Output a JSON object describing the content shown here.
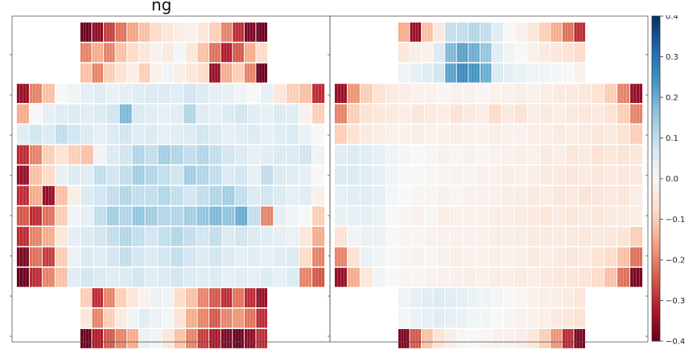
{
  "partial_title": "ng",
  "chart_data": {
    "type": "heatmap",
    "panels": [
      {
        "name": "",
        "rows": [
          {
            "k": "top",
            "values": [
              -0.42,
              -0.36,
              -0.28,
              -0.22,
              -0.16,
              -0.12,
              -0.08,
              -0.05,
              -0.03,
              -0.02,
              -0.05,
              -0.1,
              -0.2,
              -0.3,
              -0.38,
              -0.42
            ]
          },
          {
            "k": "top",
            "values": [
              -0.2,
              -0.15,
              -0.2,
              -0.12,
              -0.08,
              -0.05,
              -0.02,
              -0.04,
              0.01,
              -0.05,
              -0.12,
              -0.22,
              -0.32,
              -0.25,
              -0.15,
              -0.08
            ]
          },
          {
            "k": "top",
            "values": [
              -0.12,
              -0.2,
              -0.1,
              -0.06,
              -0.03,
              -0.1,
              -0.02,
              0.02,
              -0.03,
              -0.05,
              -0.08,
              -0.35,
              -0.15,
              -0.1,
              -0.2,
              -0.4
            ]
          },
          {
            "k": "mid",
            "values": [
              -0.35,
              -0.2,
              -0.12,
              0.0,
              0.02,
              0.04,
              0.05,
              0.03,
              0.04,
              0.05,
              0.06,
              0.06,
              0.05,
              0.08,
              0.06,
              0.04,
              0.03,
              0.02,
              0.0,
              0.04,
              -0.05,
              -0.1,
              -0.12,
              -0.3
            ]
          },
          {
            "k": "mid",
            "values": [
              -0.15,
              0.0,
              0.04,
              0.05,
              0.06,
              0.05,
              0.06,
              0.08,
              0.18,
              0.06,
              0.05,
              0.04,
              0.05,
              0.12,
              0.05,
              0.04,
              0.06,
              0.08,
              0.05,
              0.04,
              0.06,
              0.05,
              -0.02,
              -0.1
            ]
          },
          {
            "k": "mid",
            "values": [
              0.05,
              0.08,
              0.06,
              0.1,
              0.08,
              0.06,
              0.04,
              0.06,
              0.08,
              0.05,
              0.06,
              0.04,
              0.05,
              0.06,
              0.08,
              0.06,
              0.04,
              0.05,
              0.06,
              0.04,
              0.05,
              0.06,
              0.03,
              0.0
            ]
          },
          {
            "k": "mid",
            "values": [
              -0.3,
              -0.2,
              -0.1,
              -0.06,
              -0.1,
              -0.12,
              0.02,
              0.06,
              0.08,
              0.12,
              0.1,
              0.14,
              0.12,
              0.1,
              0.12,
              0.1,
              0.08,
              0.06,
              0.04,
              0.05,
              0.06,
              0.06,
              0.08,
              0.02
            ]
          },
          {
            "k": "mid",
            "values": [
              -0.35,
              -0.12,
              -0.08,
              0.03,
              0.06,
              0.05,
              0.1,
              0.08,
              0.1,
              0.14,
              0.12,
              0.1,
              0.08,
              0.14,
              0.12,
              0.1,
              0.06,
              0.08,
              0.04,
              0.1,
              0.06,
              0.05,
              0.04,
              0.0
            ]
          },
          {
            "k": "mid",
            "values": [
              -0.3,
              -0.15,
              -0.35,
              -0.12,
              -0.03,
              0.06,
              0.08,
              0.1,
              0.12,
              0.1,
              0.1,
              0.12,
              0.1,
              0.08,
              0.1,
              0.12,
              0.14,
              0.1,
              0.06,
              0.08,
              0.06,
              0.04,
              0.05,
              -0.02
            ]
          },
          {
            "k": "mid",
            "values": [
              -0.25,
              -0.3,
              -0.22,
              -0.1,
              0.02,
              0.04,
              0.1,
              0.14,
              0.12,
              0.16,
              0.14,
              0.12,
              0.12,
              0.14,
              0.16,
              0.18,
              0.16,
              0.2,
              0.1,
              -0.2,
              0.04,
              0.02,
              0.0,
              -0.1
            ]
          },
          {
            "k": "mid",
            "values": [
              -0.3,
              -0.2,
              -0.15,
              -0.05,
              0.04,
              0.06,
              0.08,
              0.1,
              0.12,
              0.1,
              0.08,
              0.1,
              0.12,
              0.1,
              0.08,
              0.1,
              0.06,
              0.08,
              0.06,
              0.05,
              0.04,
              0.03,
              -0.05,
              -0.15
            ]
          },
          {
            "k": "mid",
            "values": [
              -0.38,
              -0.22,
              -0.28,
              -0.1,
              0.03,
              0.06,
              0.05,
              0.08,
              0.1,
              0.08,
              0.06,
              0.08,
              0.1,
              0.08,
              0.06,
              0.08,
              0.06,
              0.04,
              0.05,
              0.04,
              0.05,
              0.06,
              -0.08,
              -0.2
            ]
          },
          {
            "k": "mid",
            "values": [
              -0.4,
              -0.3,
              -0.2,
              -0.12,
              0.05,
              0.08,
              0.06,
              0.05,
              0.06,
              0.08,
              0.05,
              0.06,
              0.08,
              0.06,
              0.05,
              0.06,
              0.04,
              0.05,
              0.04,
              0.06,
              0.04,
              0.06,
              -0.2,
              -0.25
            ]
          },
          {
            "k": "bot",
            "values": [
              -0.1,
              -0.3,
              -0.2,
              -0.1,
              -0.05,
              -0.02,
              0.03,
              0.02,
              -0.08,
              -0.12,
              -0.2,
              -0.25,
              -0.3,
              -0.22,
              -0.3,
              -0.35
            ]
          },
          {
            "k": "bot",
            "values": [
              -0.05,
              -0.2,
              -0.1,
              -0.04,
              0.02,
              0.05,
              0.03,
              0.01,
              -0.06,
              -0.15,
              -0.2,
              -0.25,
              -0.2,
              -0.18,
              -0.22,
              -0.3
            ]
          },
          {
            "k": "bot",
            "values": [
              -0.42,
              -0.32,
              -0.25,
              -0.2,
              -0.15,
              0.03,
              0.02,
              -0.05,
              -0.12,
              -0.2,
              -0.28,
              -0.33,
              -0.38,
              -0.4,
              -0.36,
              -0.3
            ]
          }
        ]
      },
      {
        "name": "",
        "rows": [
          {
            "k": "top",
            "values": [
              -0.15,
              -0.35,
              -0.12,
              -0.04,
              0.1,
              0.1,
              0.12,
              0.1,
              0.05,
              0.0,
              -0.02,
              -0.05,
              -0.1,
              -0.15,
              -0.22,
              -0.3
            ]
          },
          {
            "k": "top",
            "values": [
              -0.05,
              -0.03,
              -0.02,
              0.06,
              0.18,
              0.22,
              0.2,
              0.16,
              0.05,
              0.02,
              0.0,
              -0.02,
              -0.04,
              -0.05,
              -0.06,
              -0.08
            ]
          },
          {
            "k": "top",
            "values": [
              0.02,
              0.04,
              0.05,
              0.08,
              0.22,
              0.26,
              0.24,
              0.2,
              0.06,
              0.04,
              0.03,
              0.02,
              0.02,
              0.01,
              0.0,
              -0.02
            ]
          },
          {
            "k": "mid",
            "values": [
              -0.35,
              -0.18,
              -0.1,
              -0.06,
              -0.04,
              -0.03,
              -0.02,
              -0.02,
              -0.01,
              -0.02,
              -0.02,
              -0.01,
              -0.02,
              -0.02,
              -0.03,
              -0.02,
              -0.03,
              -0.04,
              -0.04,
              -0.05,
              -0.06,
              -0.1,
              -0.2,
              -0.35
            ]
          },
          {
            "k": "mid",
            "values": [
              -0.2,
              -0.1,
              -0.06,
              -0.05,
              -0.04,
              -0.03,
              -0.05,
              -0.04,
              -0.03,
              -0.06,
              -0.04,
              -0.03,
              -0.08,
              -0.04,
              -0.06,
              -0.03,
              -0.04,
              -0.03,
              -0.04,
              -0.05,
              -0.04,
              -0.06,
              -0.1,
              -0.2
            ]
          },
          {
            "k": "mid",
            "values": [
              -0.1,
              -0.06,
              -0.04,
              -0.03,
              -0.02,
              -0.02,
              -0.03,
              -0.02,
              -0.02,
              -0.03,
              -0.02,
              -0.02,
              -0.03,
              -0.02,
              -0.02,
              -0.03,
              -0.03,
              -0.04,
              -0.03,
              -0.04,
              -0.05,
              -0.04,
              -0.06,
              -0.1
            ]
          },
          {
            "k": "mid",
            "values": [
              0.05,
              0.06,
              0.05,
              0.04,
              0.02,
              0.01,
              0.0,
              -0.01,
              -0.02,
              -0.01,
              -0.02,
              -0.01,
              -0.02,
              -0.02,
              -0.03,
              -0.02,
              -0.04,
              -0.03,
              -0.05,
              -0.04,
              -0.06,
              -0.05,
              -0.06,
              -0.05
            ]
          },
          {
            "k": "mid",
            "values": [
              0.06,
              0.06,
              0.05,
              0.04,
              0.02,
              0.0,
              0.0,
              -0.01,
              -0.01,
              -0.02,
              -0.01,
              -0.02,
              -0.02,
              -0.03,
              -0.02,
              -0.03,
              -0.04,
              -0.04,
              -0.05,
              -0.04,
              -0.05,
              -0.04,
              -0.05,
              -0.04
            ]
          },
          {
            "k": "mid",
            "values": [
              0.04,
              0.05,
              0.05,
              0.04,
              0.01,
              0.0,
              -0.01,
              -0.01,
              -0.02,
              -0.01,
              -0.02,
              -0.02,
              -0.02,
              -0.03,
              -0.03,
              -0.04,
              -0.03,
              -0.05,
              -0.04,
              -0.06,
              -0.05,
              -0.04,
              -0.05,
              -0.03
            ]
          },
          {
            "k": "mid",
            "values": [
              0.03,
              0.04,
              0.04,
              0.03,
              0.0,
              -0.01,
              -0.02,
              -0.01,
              -0.03,
              -0.02,
              -0.02,
              -0.02,
              -0.03,
              -0.03,
              -0.04,
              -0.04,
              -0.05,
              -0.04,
              -0.05,
              -0.04,
              -0.05,
              -0.04,
              -0.04,
              -0.03
            ]
          },
          {
            "k": "mid",
            "values": [
              -0.06,
              0.02,
              0.03,
              0.03,
              0.0,
              -0.01,
              -0.01,
              -0.02,
              -0.02,
              -0.02,
              -0.02,
              -0.02,
              -0.03,
              -0.03,
              -0.03,
              -0.04,
              -0.04,
              -0.04,
              -0.04,
              -0.05,
              -0.04,
              -0.05,
              -0.06,
              -0.1
            ]
          },
          {
            "k": "mid",
            "values": [
              -0.2,
              -0.06,
              0.03,
              0.02,
              0.0,
              -0.01,
              -0.02,
              -0.01,
              -0.02,
              -0.03,
              -0.02,
              -0.02,
              -0.03,
              -0.02,
              -0.03,
              -0.04,
              -0.03,
              -0.04,
              -0.05,
              -0.04,
              -0.06,
              -0.08,
              -0.12,
              -0.22
            ]
          },
          {
            "k": "mid",
            "values": [
              -0.35,
              -0.15,
              -0.05,
              0.02,
              0.0,
              -0.01,
              -0.01,
              -0.02,
              -0.02,
              -0.02,
              -0.03,
              -0.02,
              -0.03,
              -0.03,
              -0.04,
              -0.03,
              -0.04,
              -0.05,
              -0.05,
              -0.06,
              -0.08,
              -0.12,
              -0.22,
              -0.38
            ]
          },
          {
            "k": "bot",
            "values": [
              0.02,
              0.04,
              0.05,
              0.06,
              0.05,
              0.04,
              0.03,
              0.02,
              0.01,
              0.0,
              -0.01,
              -0.02,
              -0.03,
              -0.03,
              -0.04,
              -0.05
            ]
          },
          {
            "k": "bot",
            "values": [
              0.01,
              0.03,
              0.04,
              0.05,
              0.04,
              0.03,
              0.02,
              0.01,
              0.0,
              -0.01,
              -0.02,
              -0.02,
              -0.03,
              -0.04,
              -0.05,
              -0.06
            ]
          },
          {
            "k": "bot",
            "values": [
              -0.38,
              -0.25,
              -0.12,
              -0.06,
              -0.03,
              -0.01,
              0.0,
              -0.01,
              -0.02,
              -0.02,
              -0.03,
              -0.05,
              -0.1,
              -0.18,
              -0.3,
              -0.38
            ]
          }
        ]
      }
    ],
    "colorbar": {
      "colormap": "RdBu",
      "vmin": -0.4,
      "vmax": 0.4,
      "ticks": [
        0.4,
        0.3,
        0.2,
        0.1,
        0.0,
        -0.1,
        -0.2,
        -0.3,
        -0.4
      ],
      "tick_labels": [
        "0.4",
        "0.3",
        "0.2",
        "0.1",
        "0.0",
        "−0.1",
        "−0.2",
        "−0.3",
        "−0.4"
      ]
    }
  }
}
